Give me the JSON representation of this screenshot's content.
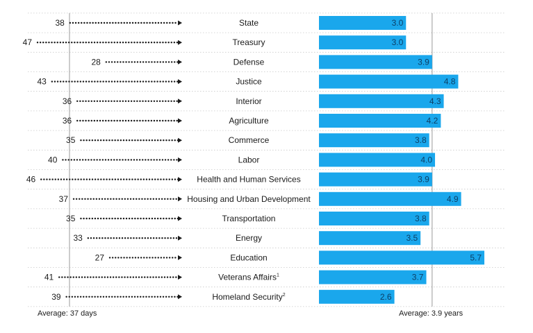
{
  "chart_data": [
    {
      "type": "dot-arrow",
      "unit": "days",
      "categories": [
        "State",
        "Treasury",
        "Defense",
        "Justice",
        "Interior",
        "Agriculture",
        "Commerce",
        "Labor",
        "Health and Human Services",
        "Housing and Urban Development",
        "Transportation",
        "Energy",
        "Education",
        "Veterans Affairs",
        "Homeland Security"
      ],
      "values": [
        38,
        47,
        28,
        43,
        36,
        36,
        35,
        40,
        46,
        37,
        35,
        33,
        27,
        41,
        39
      ],
      "average": 37,
      "average_label": "Average: 37 days",
      "grid": false
    },
    {
      "type": "bar",
      "orientation": "horizontal",
      "unit": "years",
      "categories": [
        "State",
        "Treasury",
        "Defense",
        "Justice",
        "Interior",
        "Agriculture",
        "Commerce",
        "Labor",
        "Health and Human Services",
        "Housing and Urban Development",
        "Transportation",
        "Energy",
        "Education",
        "Veterans Affairs",
        "Homeland Security"
      ],
      "values": [
        3.0,
        3.0,
        3.9,
        4.8,
        4.3,
        4.2,
        3.8,
        4.0,
        3.9,
        4.9,
        3.8,
        3.5,
        5.7,
        3.7,
        2.6
      ],
      "value_labels": [
        "3.0",
        "3.0",
        "3.9",
        "4.8",
        "4.3",
        "4.2",
        "3.8",
        "4.0",
        "3.9",
        "4.9",
        "3.8",
        "3.5",
        "5.7",
        "3.7",
        "2.6"
      ],
      "average": 3.9,
      "average_label": "Average: 3.9 years",
      "xlim": [
        0,
        5.7
      ],
      "grid": false
    }
  ],
  "labels": [
    {
      "text": "State",
      "sup": ""
    },
    {
      "text": "Treasury",
      "sup": ""
    },
    {
      "text": "Defense",
      "sup": ""
    },
    {
      "text": "Justice",
      "sup": ""
    },
    {
      "text": "Interior",
      "sup": ""
    },
    {
      "text": "Agriculture",
      "sup": ""
    },
    {
      "text": "Commerce",
      "sup": ""
    },
    {
      "text": "Labor",
      "sup": ""
    },
    {
      "text": "Health and Human Services",
      "sup": ""
    },
    {
      "text": "Housing and Urban Development",
      "sup": ""
    },
    {
      "text": "Transportation",
      "sup": ""
    },
    {
      "text": "Energy",
      "sup": ""
    },
    {
      "text": "Education",
      "sup": ""
    },
    {
      "text": "Veterans Affairs",
      "sup": "1"
    },
    {
      "text": "Homeland Security",
      "sup": "2"
    }
  ],
  "colors": {
    "bar": "#1aa7ec",
    "text": "#1a1a1a",
    "bar_label": "#0c3f66",
    "dots": "#1a1a1a",
    "divider": "#c8c8c8",
    "average_line": "#9a9a9a"
  }
}
